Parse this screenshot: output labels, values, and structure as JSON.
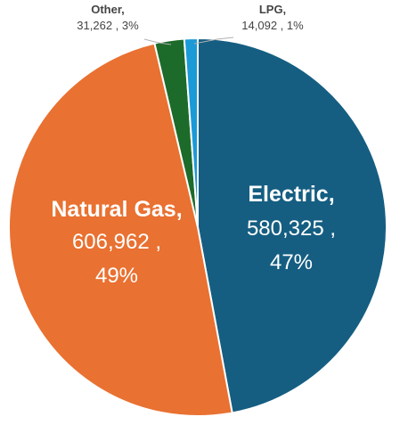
{
  "chart_data": {
    "type": "pie",
    "slices": [
      {
        "label": "Electric",
        "value": 580325,
        "pct_label": "47%",
        "value_label": "580,325",
        "color": "#155e82"
      },
      {
        "label": "Natural Gas",
        "value": 606962,
        "pct_label": "49%",
        "value_label": "606,962",
        "color": "#e97131"
      },
      {
        "label": "Other",
        "value": 31262,
        "pct_label": "3%",
        "value_label": "31,262",
        "color": "#1c6b2a"
      },
      {
        "label": "LPG",
        "value": 14092,
        "pct_label": "1%",
        "value_label": "14,092",
        "color": "#1b9ad7"
      }
    ]
  },
  "labels": {
    "electric": {
      "name": "Electric,",
      "value": "580,325 ,",
      "pct": "47%"
    },
    "natural_gas": {
      "name": "Natural Gas,",
      "value": "606,962 ,",
      "pct": "49%"
    },
    "other": {
      "name": "Other,",
      "detail": "31,262 , 3%"
    },
    "lpg": {
      "name": "LPG,",
      "detail": "14,092 , 1%"
    }
  }
}
